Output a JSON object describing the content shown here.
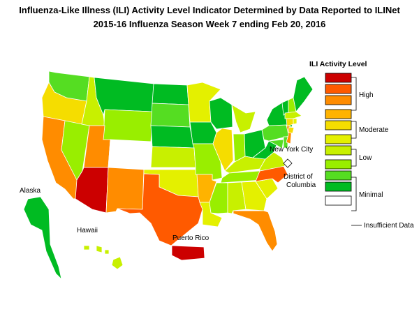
{
  "title": {
    "line1": "Influenza-Like Illness (ILI) Activity Level Indicator Determined by Data Reported to ILINet",
    "line2": "2015-16  Influenza Season Week  7 ending Feb 20, 2016"
  },
  "legend": {
    "title": "ILI Activity Level",
    "levels": [
      {
        "level": 10,
        "color": "#cc0000"
      },
      {
        "level": 9,
        "color": "#ff5a00"
      },
      {
        "level": 8,
        "color": "#ff8c00"
      },
      {
        "level": 7,
        "color": "#ffb300"
      },
      {
        "level": 6,
        "color": "#f5dd00"
      },
      {
        "level": 5,
        "color": "#e4f000"
      },
      {
        "level": 4,
        "color": "#c8f000"
      },
      {
        "level": 3,
        "color": "#99ee00"
      },
      {
        "level": 2,
        "color": "#55dd22"
      },
      {
        "level": 1,
        "color": "#00bb22"
      },
      {
        "level": 0,
        "color": "#ffffff"
      }
    ],
    "groups": {
      "high": "High",
      "moderate": "Moderate",
      "low": "Low",
      "minimal": "Minimal",
      "insufficient": "Insufficient Data"
    }
  },
  "map_labels": {
    "alaska": "Alaska",
    "hawaii": "Hawaii",
    "puerto_rico": "Puerto Rico",
    "nyc": "New York City",
    "dc_line1": "District of",
    "dc_line2": "Columbia"
  },
  "jurisdiction_levels": {
    "Washington": 2,
    "Oregon": 6,
    "California": 8,
    "Nevada": 3,
    "Idaho": 4,
    "Montana": 1,
    "Wyoming": 3,
    "Utah": 8,
    "Colorado": 0,
    "Arizona": 10,
    "New Mexico": 8,
    "Texas": 9,
    "North Dakota": 1,
    "South Dakota": 2,
    "Nebraska": 1,
    "Kansas": 4,
    "Oklahoma": 5,
    "Minnesota": 5,
    "Iowa": 1,
    "Missouri": 3,
    "Arkansas": 7,
    "Louisiana": 5,
    "Wisconsin": 1,
    "Illinois": 6,
    "Michigan": 4,
    "Indiana": 3,
    "Ohio": 1,
    "Kentucky": 4,
    "Tennessee": 3,
    "Mississippi": 3,
    "Alabama": 4,
    "Georgia": 5,
    "Florida": 8,
    "South Carolina": 5,
    "North Carolina": 9,
    "Virginia": 4,
    "West Virginia": 1,
    "Maryland": 2,
    "Delaware": 2,
    "Pennsylvania": 2,
    "New Jersey": 8,
    "New York": 1,
    "Connecticut": 6,
    "Rhode Island": 5,
    "Massachusetts": 4,
    "Vermont": 1,
    "New Hampshire": 3,
    "Maine": 1,
    "Alaska": 1,
    "Hawaii": 4,
    "Puerto Rico": 10,
    "New York City": 6,
    "District of Columbia": 0
  }
}
